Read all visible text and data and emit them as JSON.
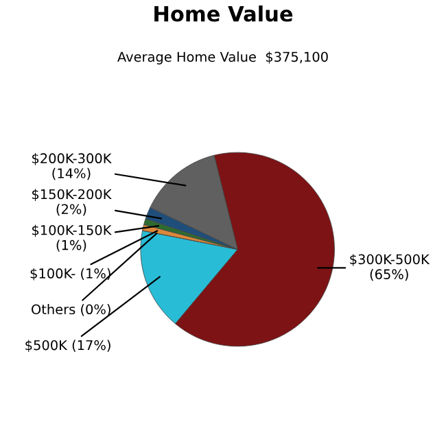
{
  "chart_data": {
    "type": "pie",
    "title": "Home Value",
    "subtitle": "Average Home Value  $375,100",
    "categories": [
      "$300K-500K",
      "$500K",
      "Others",
      "$100K-",
      "$100K-150K",
      "$150K-200K",
      "$200K-300K"
    ],
    "values": [
      65,
      17,
      0,
      1,
      1,
      2,
      14
    ],
    "value_labels": [
      "(65%)",
      "(17%)",
      "(0%)",
      "(1%)",
      "(1%)",
      "(2%)",
      "(14%)"
    ],
    "colors": [
      "#7d1315",
      "#29bcd6",
      "#d98a8a",
      "#d9883a",
      "#2e6b30",
      "#1f4e7a",
      "#606060"
    ],
    "legend": false
  }
}
